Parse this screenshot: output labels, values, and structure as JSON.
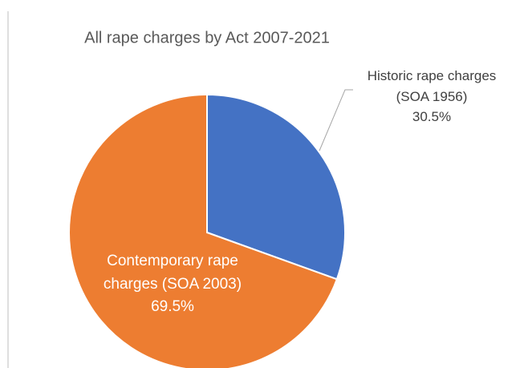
{
  "chart_data": {
    "type": "pie",
    "title": "All rape charges by Act 2007-2021",
    "categories": [
      "Historic rape charges (SOA 1956)",
      "Contemporary rape charges (SOA 2003)"
    ],
    "values": [
      30.5,
      69.5
    ],
    "value_labels": [
      "30.5%",
      "69.5%"
    ],
    "colors": [
      "#4472c4",
      "#ed7d31"
    ]
  }
}
